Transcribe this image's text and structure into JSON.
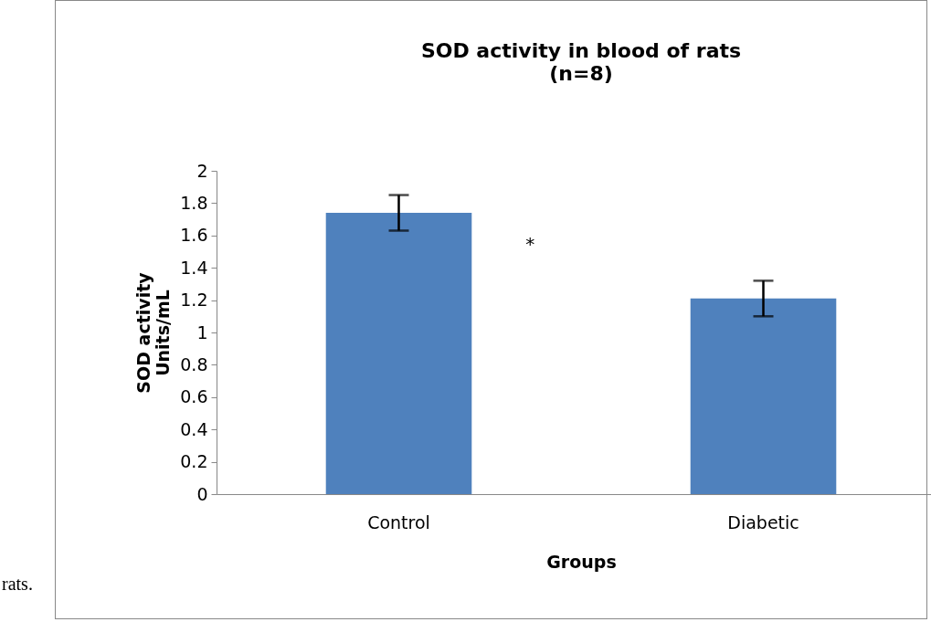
{
  "chart_data": {
    "type": "bar",
    "title": "SOD activity in blood of rats",
    "subtitle": "(n=8)",
    "xlabel": "Groups",
    "ylabel": "SOD activity\nUnits/mL",
    "categories": [
      "Control",
      "Diabetic"
    ],
    "values": [
      1.74,
      1.21
    ],
    "errors": [
      0.11,
      0.11
    ],
    "color": "#4f81bd",
    "ylim": [
      0,
      2
    ],
    "yticks": [
      0,
      0.2,
      0.4,
      0.6,
      0.8,
      1,
      1.2,
      1.4,
      1.6,
      1.8,
      2
    ],
    "grid": false,
    "annotations": [
      "*",
      "rats."
    ]
  }
}
